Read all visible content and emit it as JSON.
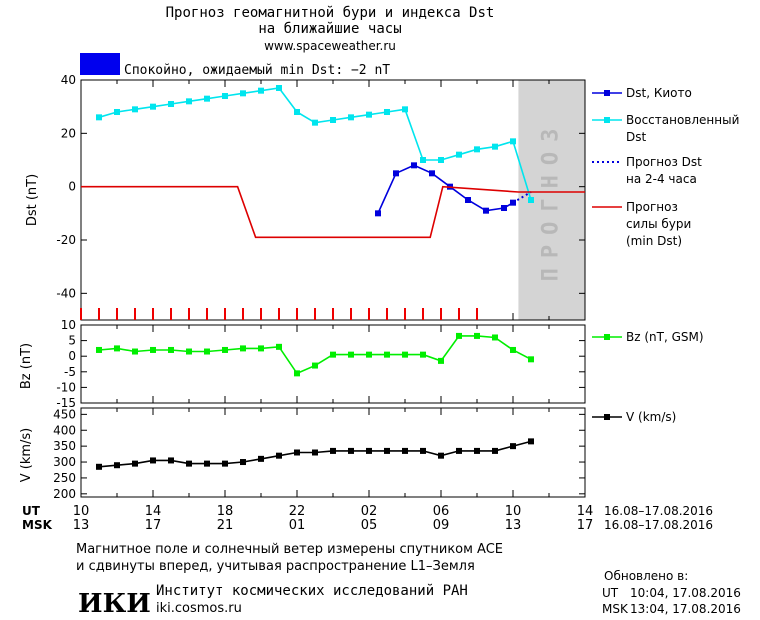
{
  "header": {
    "title_line1": "Прогноз геомагнитной бури и индекса Dst",
    "title_line2": "на ближайшие часы",
    "website": "www.spaceweather.ru",
    "status_text": "Спокойно, ожидаемый min Dst: −2 nT",
    "status_color": "#0000ee"
  },
  "chart_data": [
    {
      "type": "line",
      "name": "dst-panel",
      "ylabel": "Dst (nT)",
      "ylim": [
        -50,
        40
      ],
      "yticks": [
        40,
        20,
        0,
        -20,
        -40
      ],
      "xlim": [
        0,
        28
      ],
      "forecast_region": {
        "x_start": 24.3,
        "x_end": 28,
        "label": "ПРОГНОЗ",
        "color": "#d4d4d4"
      },
      "storm_markers": {
        "x": [
          0,
          1,
          2,
          3,
          4,
          5,
          6,
          7,
          8,
          9,
          10,
          11,
          12,
          13,
          14,
          15,
          16,
          17,
          18,
          19,
          20,
          21,
          22
        ],
        "color": "#ee0000"
      },
      "series": [
        {
          "name": "Dst, Киото",
          "color": "#0000dd",
          "style": "solid-square",
          "x": [
            16.5,
            17.5,
            18.5,
            19.5,
            20.5,
            21.5,
            22.5,
            23.5,
            24
          ],
          "y": [
            -10,
            5,
            8,
            5,
            0,
            -5,
            -9,
            -8,
            -6
          ]
        },
        {
          "name": "Восстановленный",
          "name_line2": "Dst",
          "color": "#00e5ee",
          "style": "solid-square",
          "x": [
            1,
            2,
            3,
            4,
            5,
            6,
            7,
            8,
            9,
            10,
            11,
            12,
            13,
            14,
            15,
            16,
            17,
            18,
            19,
            20,
            21,
            22,
            23,
            24,
            25
          ],
          "y": [
            26,
            28,
            29,
            30,
            31,
            32,
            33,
            34,
            35,
            36,
            37,
            28,
            24,
            25,
            26,
            27,
            28,
            29,
            10,
            10,
            12,
            14,
            15,
            17,
            -5
          ]
        },
        {
          "name": "Прогноз Dst",
          "name_line2": "на 2-4 часа",
          "color": "#0000dd",
          "style": "dotted",
          "x": [
            24,
            25
          ],
          "y": [
            -6,
            -2
          ]
        },
        {
          "name": "Прогноз",
          "name_line2": "силы бури",
          "name_line3": "(min Dst)",
          "color": "#dd0000",
          "style": "step",
          "x": [
            0,
            8.7,
            9.7,
            18.6,
            19.4,
            20.1,
            24.3,
            28
          ],
          "y": [
            0,
            0,
            -19,
            -19,
            -19,
            0,
            -2,
            -2
          ]
        }
      ]
    },
    {
      "type": "line",
      "name": "bz-panel",
      "ylabel": "Bz (nT)",
      "ylim": [
        -15,
        10
      ],
      "yticks": [
        10,
        5,
        0,
        -5,
        -10,
        -15
      ],
      "xlim": [
        0,
        28
      ],
      "series": [
        {
          "name": "Bz (nT, GSM)",
          "color": "#00ee00",
          "style": "solid-square",
          "x": [
            1,
            2,
            3,
            4,
            5,
            6,
            7,
            8,
            9,
            10,
            11,
            12,
            13,
            14,
            15,
            16,
            17,
            18,
            19,
            20,
            21,
            22,
            23,
            24,
            25
          ],
          "y": [
            2,
            2.5,
            1.5,
            2,
            2,
            1.5,
            1.5,
            2,
            2.5,
            2.5,
            3,
            -5.5,
            -3,
            0.5,
            0.5,
            0.5,
            0.5,
            0.5,
            0.5,
            -1.5,
            6.5,
            6.5,
            6,
            2,
            -1
          ]
        }
      ]
    },
    {
      "type": "line",
      "name": "v-panel",
      "ylabel": "V (km/s)",
      "ylim": [
        190,
        470
      ],
      "yticks": [
        450,
        400,
        350,
        300,
        250,
        200
      ],
      "xlim": [
        0,
        28
      ],
      "series": [
        {
          "name": "V (km/s)",
          "color": "#000000",
          "style": "solid-square",
          "x": [
            1,
            2,
            3,
            4,
            5,
            6,
            7,
            8,
            9,
            10,
            11,
            12,
            13,
            14,
            15,
            16,
            17,
            18,
            19,
            20,
            21,
            22,
            23,
            24,
            25
          ],
          "y": [
            285,
            290,
            295,
            305,
            305,
            295,
            295,
            295,
            300,
            310,
            320,
            330,
            330,
            335,
            335,
            335,
            335,
            335,
            335,
            320,
            335,
            335,
            335,
            350,
            365
          ]
        }
      ]
    }
  ],
  "x_axis": {
    "ut_label": "UT",
    "msk_label": "MSK",
    "ut_ticks": [
      "10",
      "14",
      "18",
      "22",
      "02",
      "06",
      "10",
      "14"
    ],
    "msk_ticks": [
      "13",
      "17",
      "21",
      "01",
      "05",
      "09",
      "13",
      "17"
    ],
    "ut_date_range": "16.08–17.08.2016",
    "msk_date_range": "16.08–17.08.2016"
  },
  "footer": {
    "note_line1": "Магнитное поле и солнечный ветер измерены спутником ACE",
    "note_line2": "и сдвинуты вперед, учитывая распространение L1–Земля",
    "institute_logo": "ИКИ",
    "institute_name": "Институт космических исследований РАН",
    "institute_url": "iki.cosmos.ru",
    "updated_label": "Обновлено в:",
    "updated_ut_label": "UT",
    "updated_ut": "10:04, 17.08.2016",
    "updated_msk_label": "MSK",
    "updated_msk": "13:04, 17.08.2016"
  }
}
